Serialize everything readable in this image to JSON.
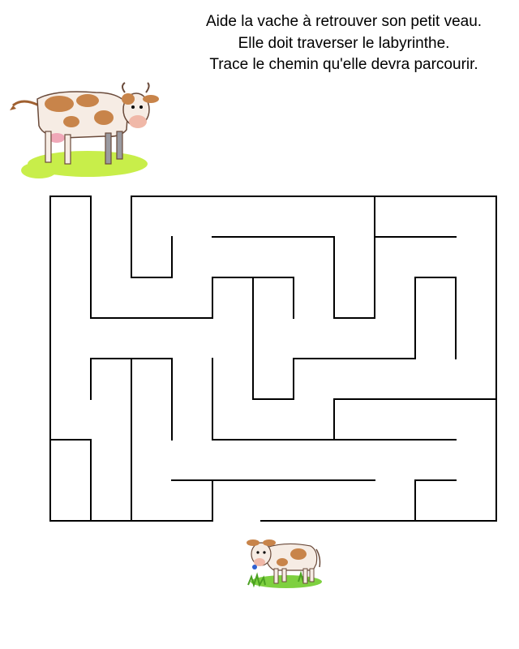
{
  "instructions": {
    "line1": "Aide la vache à retrouver son petit veau.",
    "line2": "Elle doit traverser le labyrinthe.",
    "line3": "Trace le chemin qu'elle devra parcourir."
  },
  "illustrations": {
    "start": "cow-illustration",
    "goal": "calf-illustration"
  },
  "colors": {
    "grass": "#c8ee4a",
    "cow_spots": "#c8844a",
    "maze_lines": "#000000"
  }
}
